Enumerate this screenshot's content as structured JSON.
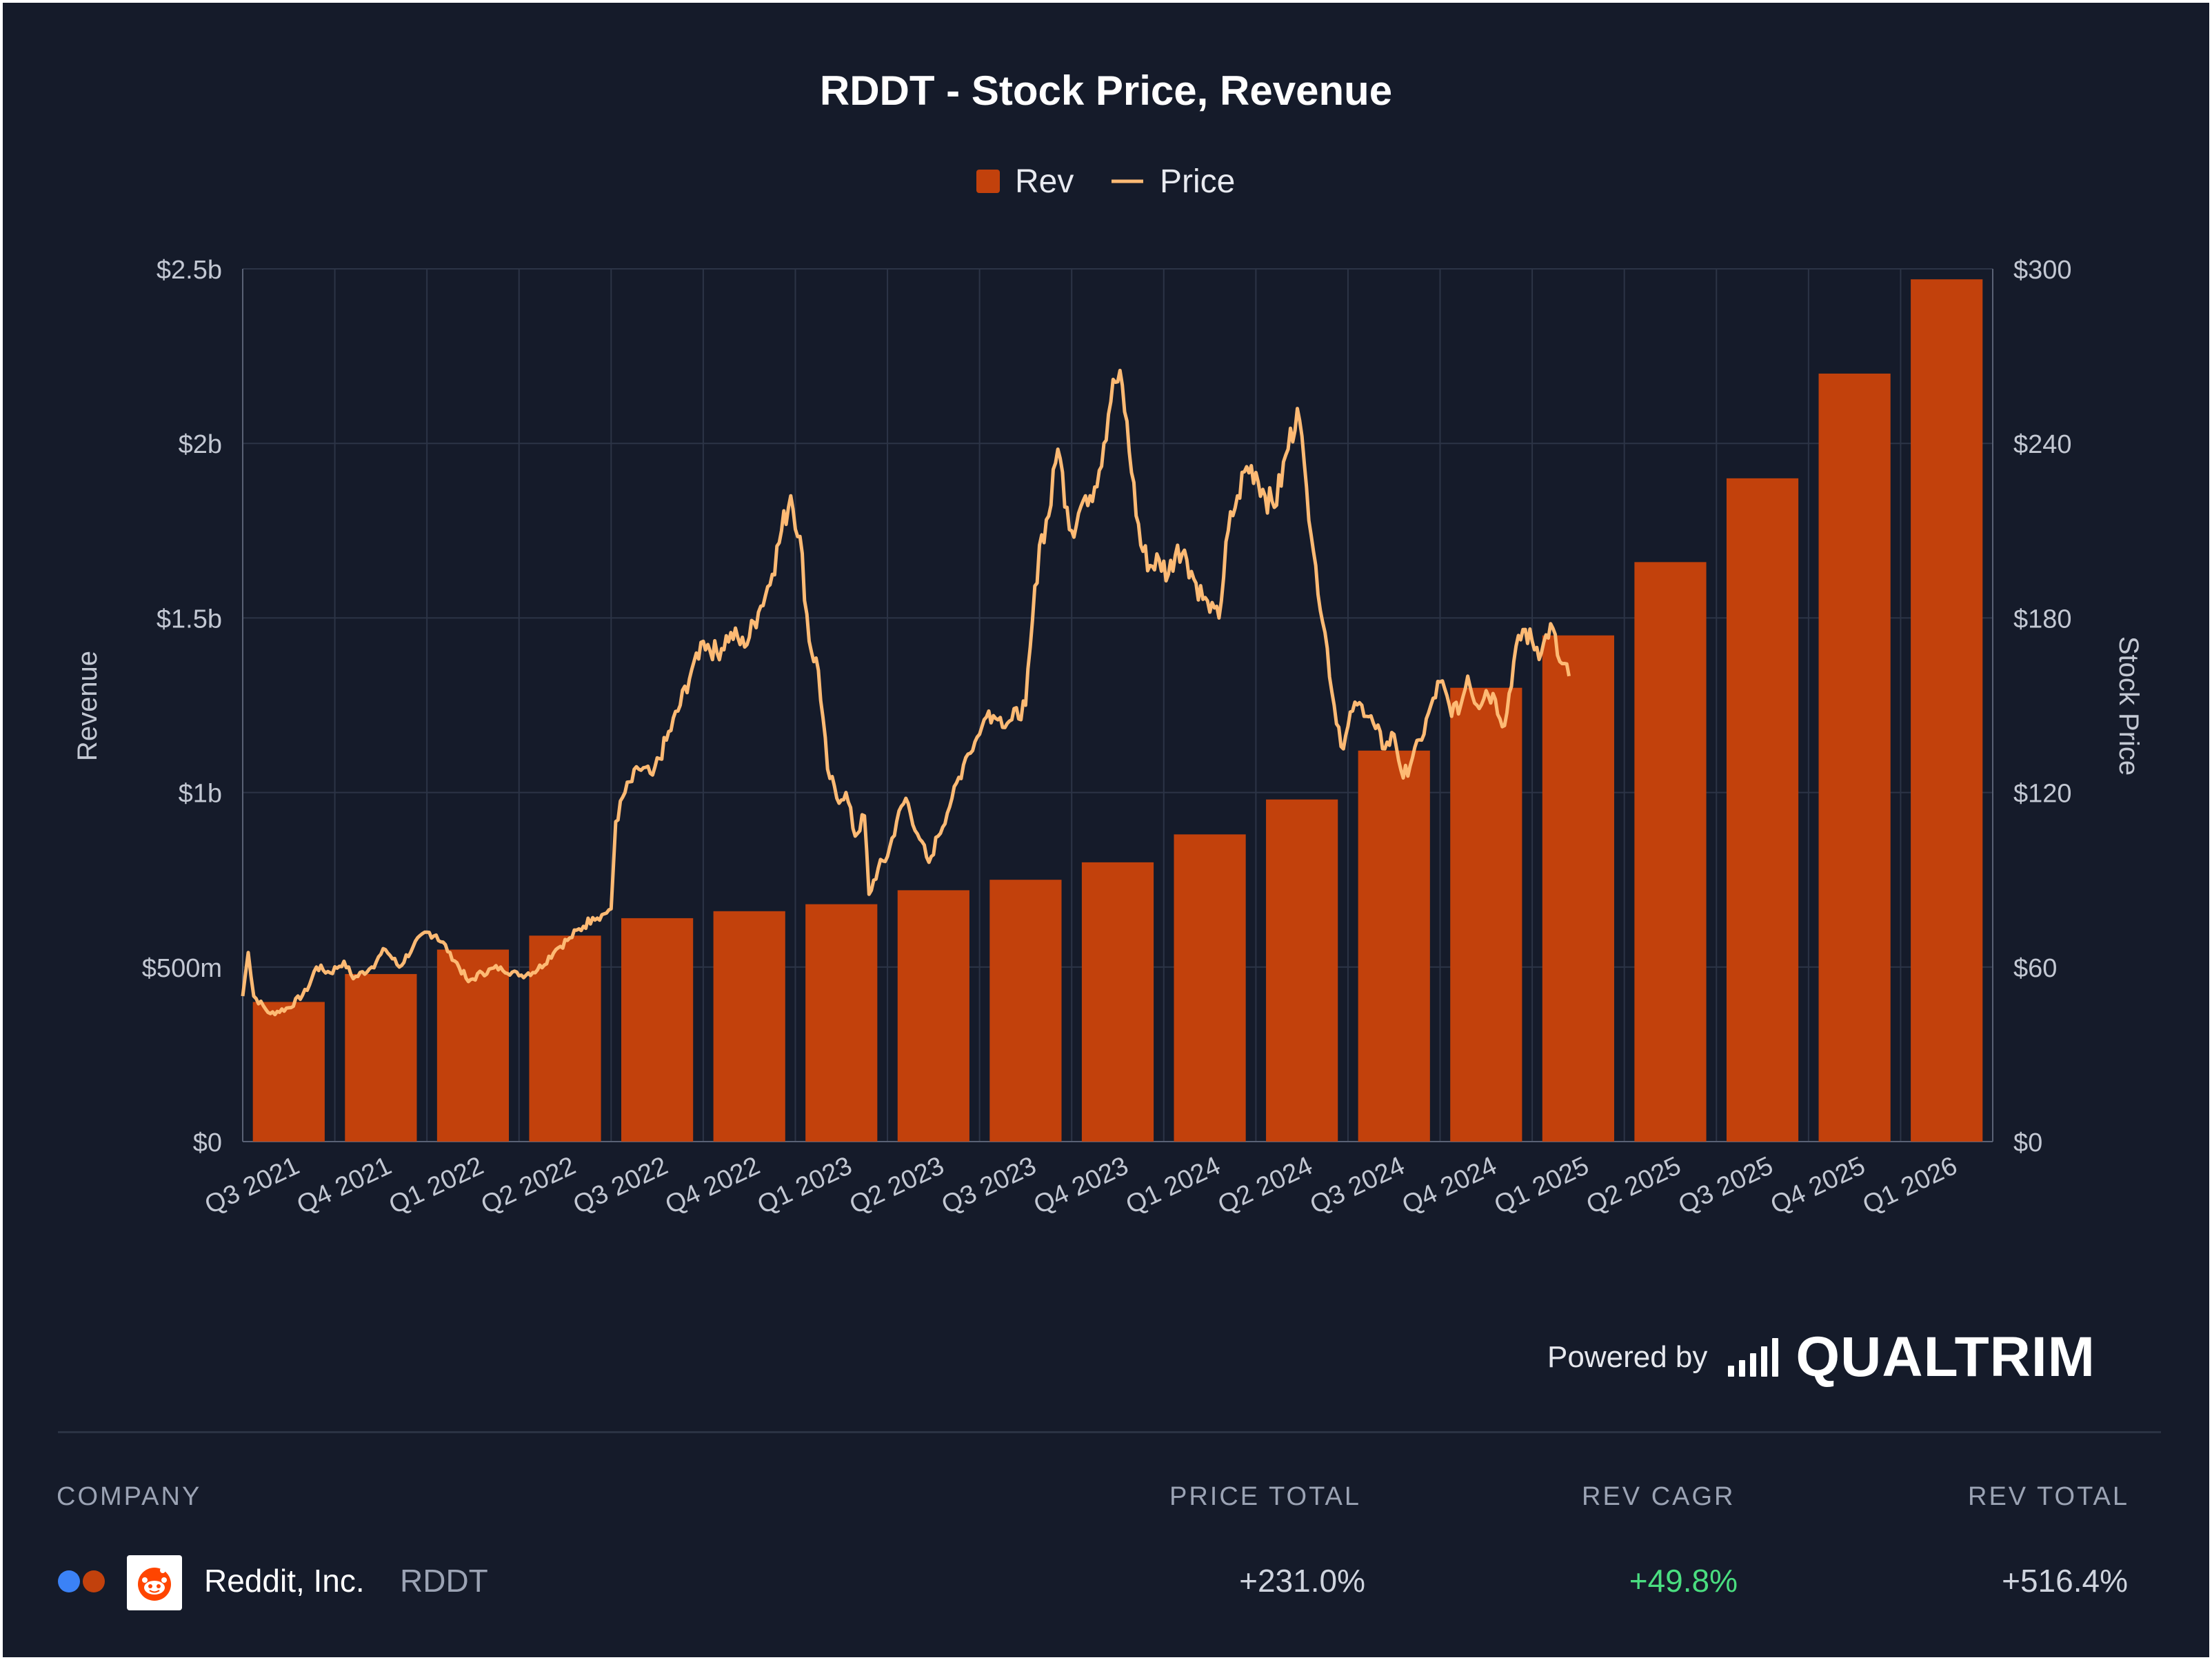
{
  "chart_data": {
    "type": "bar",
    "title": "RDDT - Stock Price, Revenue",
    "legend": [
      {
        "name": "Rev",
        "kind": "bar",
        "color": "#c2410c"
      },
      {
        "name": "Price",
        "kind": "line",
        "color": "#fdba74"
      }
    ],
    "legend_position": "top-center",
    "grid": true,
    "categories": [
      "Q3 2021",
      "Q4 2021",
      "Q1 2022",
      "Q2 2022",
      "Q3 2022",
      "Q4 2022",
      "Q1 2023",
      "Q2 2023",
      "Q3 2023",
      "Q4 2023",
      "Q1 2024",
      "Q2 2024",
      "Q3 2024",
      "Q4 2024",
      "Q1 2025",
      "Q2 2025",
      "Q3 2025",
      "Q4 2025",
      "Q1 2026"
    ],
    "series": [
      {
        "name": "Rev",
        "type": "bar",
        "axis": "left",
        "color": "#c2410c",
        "values": [
          0.4,
          0.48,
          0.55,
          0.59,
          0.64,
          0.66,
          0.68,
          0.72,
          0.75,
          0.8,
          0.88,
          0.98,
          1.12,
          1.3,
          1.45,
          1.66,
          1.9,
          2.2,
          2.47
        ]
      },
      {
        "name": "Price",
        "type": "line",
        "axis": "right",
        "color": "#fdba74",
        "anchors": [
          [
            0.0,
            50
          ],
          [
            0.06,
            65
          ],
          [
            0.12,
            50
          ],
          [
            0.3,
            44
          ],
          [
            0.5,
            46
          ],
          [
            0.7,
            52
          ],
          [
            0.8,
            60
          ],
          [
            0.95,
            58
          ],
          [
            1.1,
            62
          ],
          [
            1.2,
            56
          ],
          [
            1.4,
            60
          ],
          [
            1.55,
            66
          ],
          [
            1.7,
            60
          ],
          [
            1.85,
            67
          ],
          [
            2.0,
            72
          ],
          [
            2.1,
            71
          ],
          [
            2.25,
            65
          ],
          [
            2.45,
            55
          ],
          [
            2.6,
            58
          ],
          [
            2.8,
            60
          ],
          [
            3.0,
            57
          ],
          [
            3.2,
            59
          ],
          [
            3.4,
            66
          ],
          [
            3.55,
            70
          ],
          [
            3.7,
            74
          ],
          [
            3.8,
            77
          ],
          [
            3.9,
            78
          ],
          [
            4.0,
            80
          ],
          [
            4.05,
            110
          ],
          [
            4.15,
            120
          ],
          [
            4.3,
            128
          ],
          [
            4.45,
            126
          ],
          [
            4.6,
            138
          ],
          [
            4.75,
            150
          ],
          [
            4.9,
            165
          ],
          [
            5.0,
            172
          ],
          [
            5.15,
            168
          ],
          [
            5.3,
            175
          ],
          [
            5.45,
            170
          ],
          [
            5.6,
            182
          ],
          [
            5.75,
            195
          ],
          [
            5.85,
            210
          ],
          [
            5.95,
            222
          ],
          [
            6.05,
            208
          ],
          [
            6.15,
            172
          ],
          [
            6.25,
            162
          ],
          [
            6.35,
            128
          ],
          [
            6.45,
            118
          ],
          [
            6.55,
            120
          ],
          [
            6.65,
            105
          ],
          [
            6.75,
            112
          ],
          [
            6.8,
            85
          ],
          [
            6.9,
            94
          ],
          [
            7.0,
            98
          ],
          [
            7.1,
            110
          ],
          [
            7.2,
            118
          ],
          [
            7.35,
            104
          ],
          [
            7.45,
            96
          ],
          [
            7.55,
            105
          ],
          [
            7.7,
            118
          ],
          [
            7.85,
            132
          ],
          [
            8.0,
            140
          ],
          [
            8.1,
            148
          ],
          [
            8.2,
            145
          ],
          [
            8.35,
            145
          ],
          [
            8.5,
            150
          ],
          [
            8.55,
            170
          ],
          [
            8.65,
            205
          ],
          [
            8.75,
            215
          ],
          [
            8.85,
            238
          ],
          [
            8.95,
            218
          ],
          [
            9.0,
            210
          ],
          [
            9.15,
            222
          ],
          [
            9.25,
            225
          ],
          [
            9.35,
            240
          ],
          [
            9.45,
            262
          ],
          [
            9.55,
            260
          ],
          [
            9.65,
            230
          ],
          [
            9.75,
            205
          ],
          [
            9.85,
            198
          ],
          [
            9.95,
            200
          ],
          [
            10.05,
            195
          ],
          [
            10.15,
            205
          ],
          [
            10.25,
            200
          ],
          [
            10.35,
            192
          ],
          [
            10.5,
            182
          ],
          [
            10.6,
            180
          ],
          [
            10.7,
            210
          ],
          [
            10.8,
            222
          ],
          [
            10.9,
            232
          ],
          [
            11.0,
            230
          ],
          [
            11.1,
            222
          ],
          [
            11.2,
            218
          ],
          [
            11.35,
            238
          ],
          [
            11.45,
            252
          ],
          [
            11.55,
            225
          ],
          [
            11.65,
            198
          ],
          [
            11.75,
            175
          ],
          [
            11.85,
            150
          ],
          [
            11.95,
            135
          ],
          [
            12.05,
            148
          ],
          [
            12.15,
            150
          ],
          [
            12.3,
            142
          ],
          [
            12.4,
            135
          ],
          [
            12.5,
            140
          ],
          [
            12.6,
            125
          ],
          [
            12.7,
            132
          ],
          [
            12.8,
            138
          ],
          [
            12.9,
            150
          ],
          [
            13.0,
            158
          ],
          [
            13.1,
            150
          ],
          [
            13.2,
            147
          ],
          [
            13.3,
            160
          ],
          [
            13.4,
            150
          ],
          [
            13.5,
            155
          ],
          [
            13.6,
            152
          ],
          [
            13.7,
            143
          ],
          [
            13.8,
            165
          ],
          [
            13.9,
            176
          ],
          [
            14.0,
            172
          ],
          [
            14.1,
            168
          ],
          [
            14.2,
            178
          ],
          [
            14.3,
            165
          ],
          [
            14.4,
            160
          ]
        ]
      }
    ],
    "y_left": {
      "label": "Revenue",
      "ticks": [
        "$0",
        "$500m",
        "$1b",
        "$1.5b",
        "$2b",
        "$2.5b"
      ],
      "range": [
        0,
        2.5
      ]
    },
    "y_right": {
      "label": "Stock Price",
      "ticks": [
        "$0",
        "$60",
        "$120",
        "$180",
        "$240",
        "$300"
      ],
      "range": [
        0,
        300
      ]
    }
  },
  "footer": {
    "powered_by": "Powered by",
    "brand": "QUALTRIM"
  },
  "table": {
    "headers": {
      "company": "COMPANY",
      "price_total": "PRICE TOTAL",
      "rev_cagr": "REV CAGR",
      "rev_total": "REV TOTAL"
    },
    "rows": [
      {
        "dot_colors": [
          "#3b82f6",
          "#c2410c"
        ],
        "company": "Reddit, Inc.",
        "ticker": "RDDT",
        "price_total": "+231.0%",
        "rev_cagr": "+49.8%",
        "rev_total": "+516.4%",
        "price_total_color": "#cfd4de",
        "rev_cagr_color": "#4ade80",
        "rev_total_color": "#cfd4de"
      }
    ]
  }
}
